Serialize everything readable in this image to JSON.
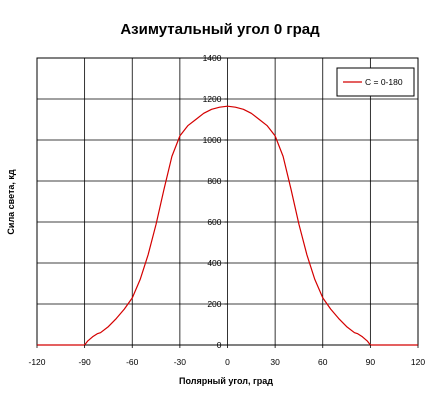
{
  "chart_data": {
    "type": "line",
    "title": "Азимутальный угол 0 град",
    "xlabel": "Полярный угол, град",
    "ylabel": "Сила света, кд",
    "xlim": [
      -120,
      120
    ],
    "ylim": [
      0,
      1400
    ],
    "xticks": [
      -120,
      -90,
      -60,
      -30,
      0,
      30,
      60,
      90,
      120
    ],
    "yticks": [
      0,
      200,
      400,
      600,
      800,
      1000,
      1200,
      1400
    ],
    "grid": true,
    "legend_position": "top-right",
    "series": [
      {
        "name": "C = 0-180",
        "color": "#d40000",
        "x": [
          -120,
          -90,
          -88,
          -85,
          -82,
          -80,
          -75,
          -70,
          -65,
          -60,
          -55,
          -50,
          -45,
          -40,
          -35,
          -30,
          -25,
          -20,
          -15,
          -10,
          -5,
          0,
          5,
          10,
          15,
          20,
          25,
          30,
          35,
          40,
          45,
          50,
          55,
          60,
          65,
          70,
          75,
          80,
          82,
          85,
          88,
          90,
          120
        ],
        "y": [
          0,
          0,
          20,
          40,
          55,
          60,
          90,
          130,
          175,
          230,
          320,
          440,
          590,
          760,
          920,
          1020,
          1070,
          1100,
          1130,
          1150,
          1160,
          1165,
          1160,
          1150,
          1130,
          1100,
          1070,
          1020,
          920,
          760,
          590,
          440,
          320,
          230,
          175,
          130,
          90,
          60,
          55,
          40,
          20,
          0,
          0
        ]
      }
    ]
  }
}
